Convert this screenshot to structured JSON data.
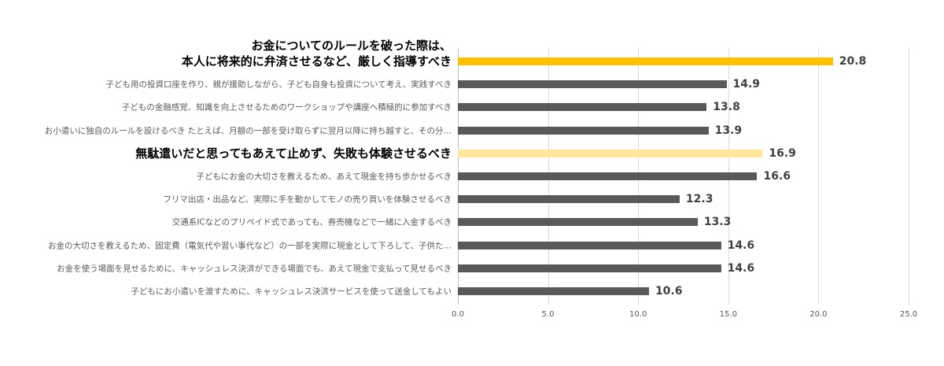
{
  "chart_data": {
    "type": "bar",
    "orientation": "horizontal",
    "title": "",
    "xlabel": "",
    "ylabel": "",
    "xlim": [
      0,
      25
    ],
    "xticks": [
      "0.0",
      "5.0",
      "10.0",
      "15.0",
      "20.0",
      "25.0"
    ],
    "grid": true,
    "colors": {
      "highlight": "#FFC000",
      "secondary": "#FFE699",
      "default": "#595959"
    },
    "categories": [
      "お金についてのルールを破った際は、\n本人に将来的に弁済させるなど、厳しく指導すべき",
      "子ども用の投資口座を作り、親が援助しながら、子ども自身も投資について考え、実践すべき",
      "子どもの金融感覚、知識を向上させるためのワークショップや講座へ積極的に参加すべき",
      "お小遣いに独自のルールを設けるべき たとえば、月額の一部を受け取らずに翌月以降に持ち越すと、その分…",
      "無駄遣いだと思ってもあえて止めず、失敗も体験させるべき",
      "子どもにお金の大切さを教えるため、あえて現金を持ち歩かせるべき",
      "フリマ出店・出品など、実際に手を動かしてモノの売り買いを体験させるべき",
      "交通系ICなどのプリペイド式であっても、券売機などで一緒に入金するべき",
      "お金の大切さを教えるため、固定費（電気代や習い事代など）の一部を実際に現金として下ろして、子供た…",
      "お金を使う場面を見せるために、キャッシュレス決済ができる場面でも、あえて現金で支払って見せるべき",
      "子どもにお小遣いを渡すために、キャッシュレス決済サービスを使って送金してもよい"
    ],
    "values": [
      20.8,
      14.9,
      13.8,
      13.9,
      16.9,
      16.6,
      12.3,
      13.3,
      14.6,
      14.6,
      10.6
    ],
    "value_labels": [
      "20.8",
      "14.9",
      "13.8",
      "13.9",
      "16.9",
      "16.6",
      "12.3",
      "13.3",
      "14.6",
      "14.6",
      "10.6"
    ],
    "highlight": [
      "highlight",
      "default",
      "default",
      "default",
      "secondary",
      "default",
      "default",
      "default",
      "default",
      "default",
      "default"
    ]
  }
}
